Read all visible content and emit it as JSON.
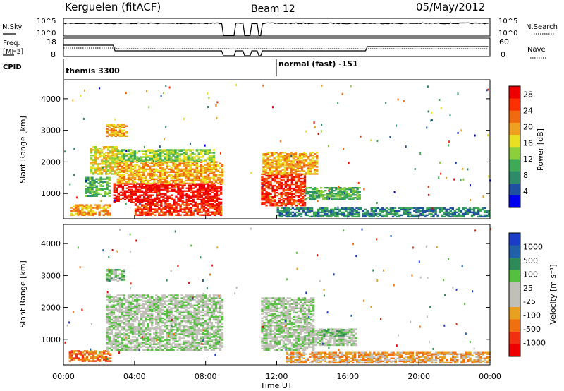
{
  "header": {
    "station": "Kerguelen (fitACF)",
    "beam": "Beam 12",
    "date": "05/May/2012"
  },
  "sky_panel": {
    "left_label": "N.Sky",
    "right_label": "N.Search",
    "left_ticks": [
      "10^5",
      "10^0"
    ],
    "right_ticks": [
      "10^5",
      "10^0"
    ]
  },
  "freq_panel": {
    "left_label_1": "Freq.",
    "left_label_2": "[MHz]",
    "right_label": "Nave",
    "left_ticks": [
      "18",
      "8"
    ],
    "right_ticks": [
      "60",
      "0"
    ]
  },
  "cpid": {
    "label": "CPID",
    "segments": [
      {
        "name": "themis 3300",
        "start_hour": 0,
        "end_hour": 12
      },
      {
        "name": "normal (fast) -151",
        "start_hour": 12,
        "end_hour": 24
      }
    ]
  },
  "colors": {
    "power_scale": [
      "#0000ee",
      "#1f4fa0",
      "#2e8b6a",
      "#3faa55",
      "#8ccf3c",
      "#e8e020",
      "#f0a020",
      "#f06a10",
      "#ff3000",
      "#ee0000"
    ],
    "velocity_scale": [
      "#1a3cc8",
      "#2060a8",
      "#2e8b57",
      "#55c040",
      "#c0c0b8",
      "#c0c0b8",
      "#e8a020",
      "#f07010",
      "#f03010",
      "#ee0000"
    ],
    "ground_scatter": "#b8b8b0"
  },
  "chart_data": [
    {
      "type": "heatmap",
      "name_role": "power",
      "xlabel": "Time UT",
      "ylabel": "Slant Range [km]",
      "xlim": [
        0,
        24
      ],
      "ylim": [
        200,
        4600
      ],
      "x_ticks": [
        "00:00",
        "04:00",
        "08:00",
        "12:00",
        "16:00",
        "20:00",
        "00:00"
      ],
      "y_ticks": [
        1000,
        2000,
        3000,
        4000
      ],
      "colorbar_label": "Power [dB]",
      "colorbar_ticks": [
        4,
        8,
        12,
        16,
        20,
        24,
        28
      ],
      "colorbar_range": [
        0,
        30
      ],
      "data_gaps_hours": [
        [
          8.9,
          9.6
        ],
        [
          10.1,
          10.5
        ],
        [
          10.9,
          11.1
        ]
      ],
      "regions": [
        {
          "t0": 0.4,
          "t1": 2.6,
          "r0": 300,
          "r1": 650,
          "level": 6
        },
        {
          "t0": 1.2,
          "t1": 2.6,
          "r0": 900,
          "r1": 1500,
          "level": 3
        },
        {
          "t0": 1.5,
          "t1": 3.0,
          "r0": 1600,
          "r1": 2500,
          "level": 5
        },
        {
          "t0": 2.4,
          "t1": 3.6,
          "r0": 2800,
          "r1": 3200,
          "level": 6
        },
        {
          "t0": 2.8,
          "t1": 9.0,
          "r0": 700,
          "r1": 1300,
          "level": 9
        },
        {
          "t0": 3.0,
          "t1": 8.9,
          "r0": 1300,
          "r1": 2000,
          "level": 6
        },
        {
          "t0": 3.0,
          "t1": 8.5,
          "r0": 2000,
          "r1": 2400,
          "level": 4
        },
        {
          "t0": 4.0,
          "t1": 8.9,
          "r0": 300,
          "r1": 700,
          "level": 8
        },
        {
          "t0": 11.0,
          "t1": 13.6,
          "r0": 600,
          "r1": 1600,
          "level": 8
        },
        {
          "t0": 11.2,
          "t1": 14.2,
          "r0": 1600,
          "r1": 2300,
          "level": 6
        },
        {
          "t0": 13.6,
          "t1": 16.6,
          "r0": 800,
          "r1": 1200,
          "level": 3
        },
        {
          "t0": 12.0,
          "t1": 24.0,
          "r0": 250,
          "r1": 550,
          "level": 2
        }
      ]
    },
    {
      "type": "heatmap",
      "name_role": "velocity",
      "xlabel": "Time UT",
      "ylabel": "Slant Range [km]",
      "xlim": [
        0,
        24
      ],
      "ylim": [
        200,
        4600
      ],
      "x_ticks": [
        "00:00",
        "04:00",
        "08:00",
        "12:00",
        "16:00",
        "20:00",
        "00:00"
      ],
      "y_ticks": [
        1000,
        2000,
        3000,
        4000
      ],
      "colorbar_label": "Velocity [m s⁻¹]",
      "colorbar_ticks": [
        1000,
        500,
        100,
        25,
        -25,
        -100,
        -500,
        -1000
      ],
      "data_gaps_hours": [
        [
          8.9,
          9.6
        ],
        [
          10.1,
          10.5
        ],
        [
          10.9,
          11.1
        ]
      ],
      "regions": [
        {
          "t0": 0.3,
          "t1": 2.6,
          "r0": 300,
          "r1": 650,
          "level": 7
        },
        {
          "t0": 2.4,
          "t1": 9.0,
          "r0": 650,
          "r1": 2400,
          "level": 4
        },
        {
          "t0": 2.4,
          "t1": 3.4,
          "r0": 2800,
          "r1": 3200,
          "level": 3
        },
        {
          "t0": 11.0,
          "t1": 14.0,
          "r0": 650,
          "r1": 2300,
          "level": 4
        },
        {
          "t0": 14.0,
          "t1": 16.5,
          "r0": 800,
          "r1": 1300,
          "level": 4
        },
        {
          "t0": 14.5,
          "t1": 16.0,
          "r0": 1100,
          "r1": 1300,
          "level": 3
        },
        {
          "t0": 12.5,
          "t1": 24.0,
          "r0": 250,
          "r1": 600,
          "level": 6
        }
      ]
    }
  ]
}
